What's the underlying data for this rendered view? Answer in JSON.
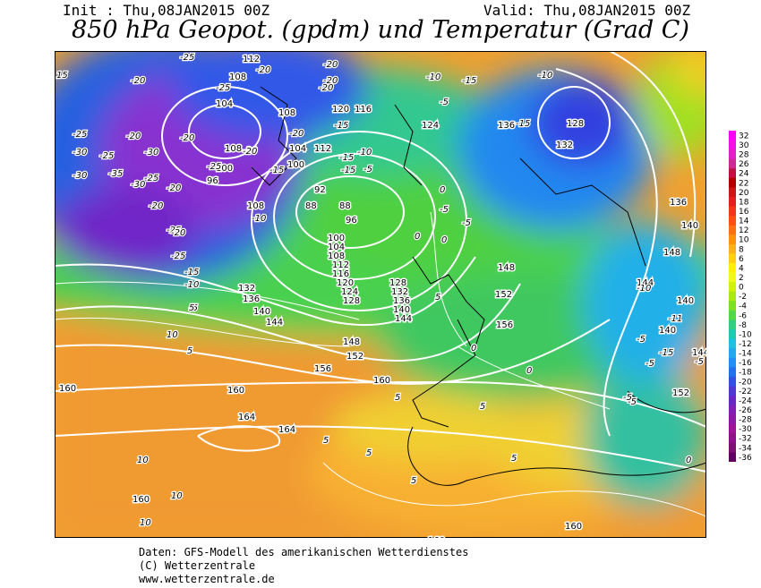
{
  "header": {
    "init": "Init : Thu,08JAN2015 00Z",
    "valid": "Valid: Thu,08JAN2015 00Z",
    "title": "850 hPa Geopot. (gpdm) und Temperatur (Grad C)"
  },
  "legend": {
    "values": [
      "32",
      "30",
      "28",
      "26",
      "24",
      "22",
      "20",
      "18",
      "16",
      "14",
      "12",
      "10",
      "8",
      "6",
      "4",
      "2",
      "0",
      "-2",
      "-4",
      "-6",
      "-8",
      "-10",
      "-12",
      "-14",
      "-16",
      "-18",
      "-20",
      "-22",
      "-24",
      "-26",
      "-28",
      "-30",
      "-32",
      "-34",
      "-36"
    ],
    "colors": [
      "#ff00ff",
      "#f010e8",
      "#e020c8",
      "#d02890",
      "#c01040",
      "#b00000",
      "#c81818",
      "#e02020",
      "#f03818",
      "#ff5010",
      "#ff7010",
      "#ff9010",
      "#ffb020",
      "#ffd018",
      "#ffee10",
      "#f0f820",
      "#d0f010",
      "#a8e818",
      "#80e020",
      "#50d848",
      "#30d080",
      "#20c8b0",
      "#20c0e0",
      "#20a8f0",
      "#2090f8",
      "#2070f0",
      "#3050e8",
      "#5038d8",
      "#6828c8",
      "#8020b8",
      "#9018a8",
      "#a01098",
      "#901088",
      "#801070",
      "#600060"
    ]
  },
  "map": {
    "geopotential_labels": [
      "112",
      "108",
      "104",
      "108",
      "100",
      "96",
      "108",
      "100",
      "104",
      "112",
      "108",
      "120",
      "116",
      "124",
      "136",
      "128",
      "132",
      "136",
      "92",
      "88",
      "88",
      "96",
      "100",
      "104",
      "108",
      "112",
      "116",
      "120",
      "124",
      "128",
      "132",
      "136",
      "140",
      "144",
      "128",
      "132",
      "136",
      "140",
      "144",
      "148",
      "152",
      "156",
      "148",
      "152",
      "156",
      "160",
      "160",
      "164",
      "164",
      "160",
      "152",
      "140",
      "148",
      "144",
      "140",
      "140",
      "144",
      "160",
      "160",
      "160",
      "160"
    ],
    "temperature_labels": [
      "-25",
      "-20",
      "-20",
      "-20",
      "-25",
      "-20",
      "-20",
      "-15",
      "-10",
      "-15",
      "-15",
      "-10",
      "-5",
      "-25",
      "-20",
      "-30",
      "-25",
      "-20",
      "-15",
      "-20",
      "-25",
      "-30",
      "-35",
      "-30",
      "-30",
      "-25",
      "-20",
      "-25",
      "-20",
      "-20",
      "-15",
      "-10",
      "-5",
      "-20",
      "-25",
      "-20",
      "-15",
      "-10",
      "-5",
      "0",
      "0",
      "-5",
      "-5",
      "-15",
      "-10",
      "5",
      "10",
      "5",
      "0",
      "5",
      "0",
      "5",
      "5",
      "5",
      "10",
      "10",
      "10",
      "5",
      "5",
      "5",
      "0",
      "-5",
      "-5",
      "-10",
      "-15",
      "-5",
      "-11",
      "-5",
      "-5",
      "0",
      "15"
    ]
  },
  "footer": {
    "line1": "Daten: GFS-Modell des amerikanischen Wetterdienstes",
    "line2": "(C) Wetterzentrale",
    "line3": "www.wetterzentrale.de"
  }
}
